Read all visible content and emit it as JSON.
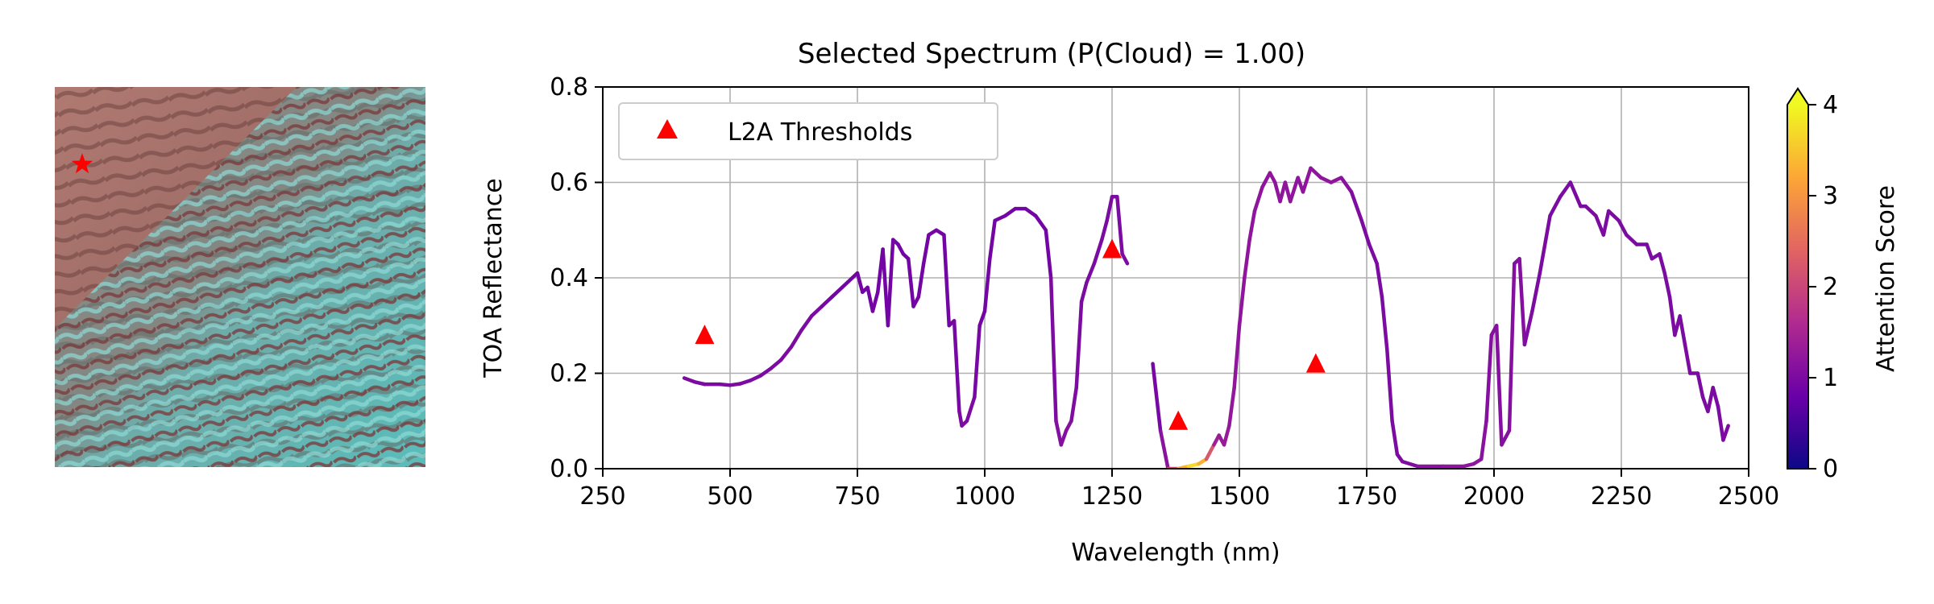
{
  "thumbnail": {
    "marker_color": "#ff0000",
    "colors": {
      "sand_red": "#a8706a",
      "dune_dark": "#6e4440",
      "sand_light": "#c79a90",
      "cyan": "#4fc6c2",
      "cyan_light": "#8fdad6"
    },
    "marker_icon": "star-icon"
  },
  "chart_data": {
    "type": "line",
    "title": "Selected Spectrum (P(Cloud) = 1.00)",
    "xlabel": "Wavelength (nm)",
    "ylabel": "TOA Reflectance",
    "xlim": [
      250,
      2500
    ],
    "ylim": [
      0,
      0.8
    ],
    "xticks": [
      250,
      500,
      750,
      1000,
      1250,
      1500,
      1750,
      2000,
      2250,
      2500
    ],
    "xtick_labels": [
      "250",
      "500",
      "750",
      "1000",
      "1250",
      "1500",
      "1750",
      "2000",
      "2250",
      "2500"
    ],
    "yticks": [
      0.0,
      0.2,
      0.4,
      0.6,
      0.8
    ],
    "ytick_labels": [
      "0.0",
      "0.2",
      "0.4",
      "0.6",
      "0.8"
    ],
    "grid": true,
    "legend": {
      "placement": "top-left",
      "entries": [
        "L2A Thresholds"
      ]
    },
    "colorbar": {
      "label": "Attention Score",
      "min": 0,
      "max": 4,
      "extend": "max",
      "ticks": [
        0,
        1,
        2,
        3,
        4
      ],
      "tick_labels": [
        "0",
        "1",
        "2",
        "3",
        "4"
      ],
      "colormap": "plasma",
      "stops": [
        "#0d0887",
        "#6a00a8",
        "#b12a90",
        "#e16462",
        "#fca636",
        "#f0f921"
      ]
    },
    "series": [
      {
        "segments": [
          [
            [
              410,
              0.19,
              1.0
            ],
            [
              430,
              0.182,
              1.0
            ],
            [
              450,
              0.177,
              1.0
            ],
            [
              480,
              0.177,
              1.0
            ],
            [
              500,
              0.175,
              1.0
            ],
            [
              520,
              0.178,
              1.0
            ],
            [
              540,
              0.185,
              1.0
            ],
            [
              560,
              0.195,
              1.0
            ],
            [
              580,
              0.21,
              1.0
            ],
            [
              600,
              0.228,
              1.0
            ],
            [
              620,
              0.255,
              1.0
            ],
            [
              640,
              0.29,
              1.0
            ],
            [
              660,
              0.32,
              1.0
            ],
            [
              680,
              0.34,
              1.0
            ],
            [
              700,
              0.36,
              0.9
            ],
            [
              720,
              0.38,
              0.9
            ],
            [
              740,
              0.4,
              0.9
            ],
            [
              750,
              0.41,
              0.9
            ],
            [
              760,
              0.37,
              0.9
            ],
            [
              770,
              0.38,
              0.9
            ],
            [
              780,
              0.33,
              0.9
            ],
            [
              790,
              0.37,
              0.9
            ],
            [
              800,
              0.46,
              0.9
            ],
            [
              810,
              0.3,
              0.9
            ],
            [
              820,
              0.48,
              0.9
            ],
            [
              830,
              0.47,
              0.9
            ],
            [
              840,
              0.45,
              0.9
            ],
            [
              850,
              0.44,
              0.9
            ],
            [
              860,
              0.34,
              0.9
            ],
            [
              870,
              0.36,
              0.9
            ],
            [
              880,
              0.43,
              0.9
            ],
            [
              890,
              0.49,
              0.9
            ],
            [
              905,
              0.5,
              0.9
            ],
            [
              920,
              0.49,
              0.9
            ],
            [
              930,
              0.3,
              0.9
            ],
            [
              940,
              0.31,
              0.9
            ],
            [
              950,
              0.12,
              1.0
            ],
            [
              955,
              0.09,
              1.0
            ],
            [
              965,
              0.1,
              1.0
            ],
            [
              980,
              0.15,
              1.0
            ],
            [
              990,
              0.3,
              0.9
            ],
            [
              1000,
              0.33,
              0.9
            ],
            [
              1010,
              0.44,
              0.9
            ],
            [
              1020,
              0.52,
              0.9
            ],
            [
              1040,
              0.53,
              0.9
            ],
            [
              1060,
              0.545,
              0.9
            ],
            [
              1080,
              0.545,
              0.9
            ],
            [
              1100,
              0.53,
              0.9
            ],
            [
              1120,
              0.5,
              0.9
            ],
            [
              1130,
              0.4,
              0.9
            ],
            [
              1140,
              0.1,
              1.1
            ],
            [
              1150,
              0.05,
              1.1
            ],
            [
              1160,
              0.08,
              1.1
            ],
            [
              1170,
              0.1,
              1.1
            ],
            [
              1180,
              0.17,
              1.0
            ],
            [
              1190,
              0.35,
              1.0
            ],
            [
              1200,
              0.39,
              1.0
            ],
            [
              1215,
              0.43,
              1.0
            ],
            [
              1230,
              0.48,
              1.0
            ],
            [
              1240,
              0.52,
              1.0
            ],
            [
              1250,
              0.57,
              1.0
            ],
            [
              1260,
              0.57,
              1.0
            ],
            [
              1270,
              0.45,
              1.0
            ],
            [
              1280,
              0.43,
              1.0
            ]
          ],
          [
            [
              1330,
              0.22,
              0.9
            ],
            [
              1345,
              0.08,
              1.0
            ],
            [
              1360,
              0.0,
              1.3
            ],
            [
              1380,
              0.0,
              2.8
            ],
            [
              1400,
              0.005,
              3.8
            ],
            [
              1420,
              0.01,
              3.6
            ],
            [
              1435,
              0.02,
              3.0
            ],
            [
              1450,
              0.05,
              1.5
            ],
            [
              1460,
              0.07,
              1.3
            ],
            [
              1470,
              0.05,
              1.3
            ],
            [
              1480,
              0.09,
              1.3
            ],
            [
              1490,
              0.17,
              1.2
            ],
            [
              1500,
              0.3,
              1.2
            ],
            [
              1510,
              0.4,
              1.2
            ],
            [
              1520,
              0.48,
              1.2
            ],
            [
              1530,
              0.54,
              1.2
            ],
            [
              1545,
              0.59,
              1.2
            ],
            [
              1560,
              0.62,
              1.2
            ],
            [
              1570,
              0.6,
              1.2
            ],
            [
              1580,
              0.56,
              1.2
            ],
            [
              1590,
              0.6,
              1.2
            ],
            [
              1600,
              0.56,
              1.2
            ],
            [
              1615,
              0.61,
              1.2
            ],
            [
              1625,
              0.58,
              1.2
            ],
            [
              1640,
              0.63,
              1.2
            ],
            [
              1660,
              0.61,
              1.2
            ],
            [
              1680,
              0.6,
              1.2
            ],
            [
              1700,
              0.61,
              1.2
            ],
            [
              1720,
              0.58,
              1.1
            ],
            [
              1740,
              0.52,
              1.0
            ],
            [
              1755,
              0.47,
              1.0
            ],
            [
              1770,
              0.43,
              1.0
            ],
            [
              1780,
              0.36,
              1.0
            ],
            [
              1790,
              0.25,
              1.0
            ],
            [
              1800,
              0.1,
              1.0
            ],
            [
              1810,
              0.03,
              1.0
            ],
            [
              1820,
              0.015,
              1.0
            ],
            [
              1850,
              0.005,
              1.1
            ],
            [
              1900,
              0.005,
              1.2
            ],
            [
              1940,
              0.005,
              1.2
            ],
            [
              1960,
              0.01,
              1.2
            ],
            [
              1975,
              0.02,
              1.2
            ],
            [
              1985,
              0.1,
              1.1
            ],
            [
              1995,
              0.28,
              1.1
            ],
            [
              2005,
              0.3,
              1.1
            ],
            [
              2015,
              0.05,
              1.1
            ],
            [
              2030,
              0.08,
              1.1
            ],
            [
              2040,
              0.43,
              1.1
            ],
            [
              2050,
              0.44,
              1.1
            ],
            [
              2060,
              0.26,
              1.1
            ],
            [
              2075,
              0.33,
              1.0
            ],
            [
              2090,
              0.41,
              1.0
            ],
            [
              2110,
              0.53,
              1.0
            ],
            [
              2130,
              0.57,
              1.0
            ],
            [
              2150,
              0.6,
              1.0
            ],
            [
              2170,
              0.55,
              1.0
            ],
            [
              2180,
              0.55,
              1.0
            ],
            [
              2200,
              0.53,
              1.0
            ],
            [
              2215,
              0.49,
              1.0
            ],
            [
              2225,
              0.54,
              1.0
            ],
            [
              2245,
              0.52,
              1.0
            ],
            [
              2260,
              0.49,
              1.0
            ],
            [
              2280,
              0.47,
              1.0
            ],
            [
              2300,
              0.47,
              1.0
            ],
            [
              2310,
              0.44,
              1.0
            ],
            [
              2325,
              0.45,
              1.0
            ],
            [
              2335,
              0.41,
              1.0
            ],
            [
              2345,
              0.36,
              1.0
            ],
            [
              2355,
              0.28,
              1.0
            ],
            [
              2365,
              0.32,
              1.0
            ],
            [
              2375,
              0.26,
              1.0
            ],
            [
              2385,
              0.2,
              1.0
            ],
            [
              2400,
              0.2,
              1.0
            ],
            [
              2410,
              0.15,
              1.0
            ],
            [
              2420,
              0.12,
              1.0
            ],
            [
              2430,
              0.17,
              1.0
            ],
            [
              2440,
              0.13,
              1.0
            ],
            [
              2450,
              0.06,
              1.0
            ],
            [
              2460,
              0.09,
              1.0
            ]
          ]
        ]
      }
    ],
    "thresholds": {
      "name": "L2A Thresholds",
      "color": "#ff0000",
      "points": [
        [
          450,
          0.28
        ],
        [
          1250,
          0.46
        ],
        [
          1380,
          0.1
        ],
        [
          1650,
          0.22
        ]
      ]
    }
  }
}
